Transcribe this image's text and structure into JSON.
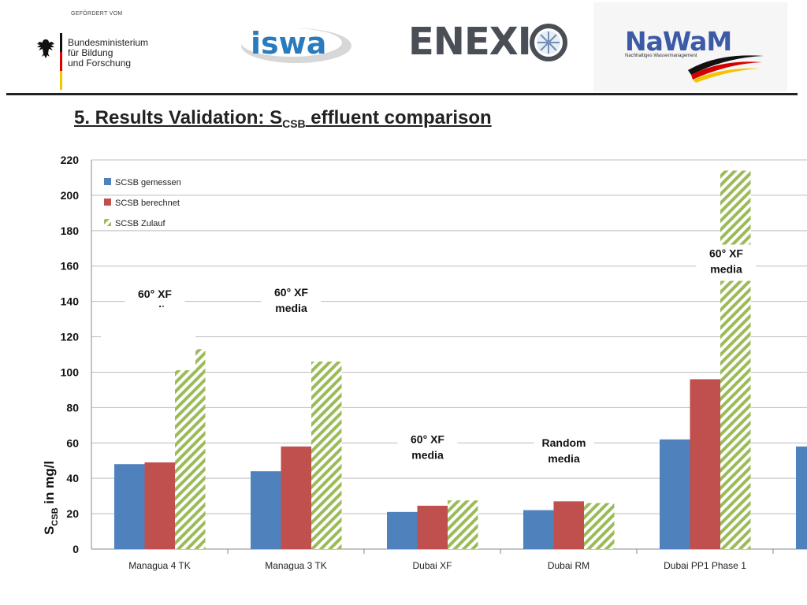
{
  "header": {
    "bmbf_funded": "GEFÖRDERT VOM",
    "bmbf_name": [
      "Bundesministerium",
      "für Bildung",
      "und Forschung"
    ],
    "isw_logo_text": "iswa",
    "enexio_logo_text": "ENEXI",
    "nawam_logo_text": "NaWaM",
    "nawam_sub": "Nachhaltiges Wassermanagement"
  },
  "title": {
    "prefix": "5. Results Validation: S",
    "subscript": "CSB",
    "suffix": " effluent comparison"
  },
  "chart_data": {
    "type": "bar",
    "ylabel_main": "S",
    "ylabel_sub": "CSB",
    "ylabel_rest": " in mg/l",
    "ylim": [
      0,
      220
    ],
    "yticks": [
      0,
      20,
      40,
      60,
      80,
      100,
      120,
      140,
      160,
      180,
      200,
      220
    ],
    "grid": true,
    "legend_position": "top-left",
    "categories": [
      "Managua 4 TK",
      "Managua 3 TK",
      "Dubai XF",
      "Dubai RM",
      "Dubai PP1 Phase 1",
      "D"
    ],
    "series": [
      {
        "name": "SCSB gemessen",
        "color": "#4f81bd",
        "pattern": "solid",
        "values": [
          48,
          44,
          21,
          22,
          62,
          58
        ]
      },
      {
        "name": "SCSB berechnet",
        "color": "#c0504d",
        "pattern": "solid",
        "values": [
          49,
          58,
          24.5,
          27,
          96,
          null
        ]
      },
      {
        "name": "SCSB Zulauf",
        "color": "#9bbb59",
        "pattern": "hatch",
        "values": [
          113,
          106,
          27.5,
          26,
          214,
          null
        ]
      }
    ],
    "annotations": [
      {
        "lines": [
          "60° XF",
          "media"
        ],
        "category": 0,
        "value": 142
      },
      {
        "lines": [
          "60° XF",
          "media"
        ],
        "category": 1,
        "value": 143
      },
      {
        "lines": [
          "60° XF",
          "media"
        ],
        "category": 2,
        "value": 60
      },
      {
        "lines": [
          "Random",
          "media"
        ],
        "category": 3,
        "value": 58
      },
      {
        "lines": [
          "60° XF",
          "media"
        ],
        "category": 4,
        "value": 165
      }
    ]
  }
}
